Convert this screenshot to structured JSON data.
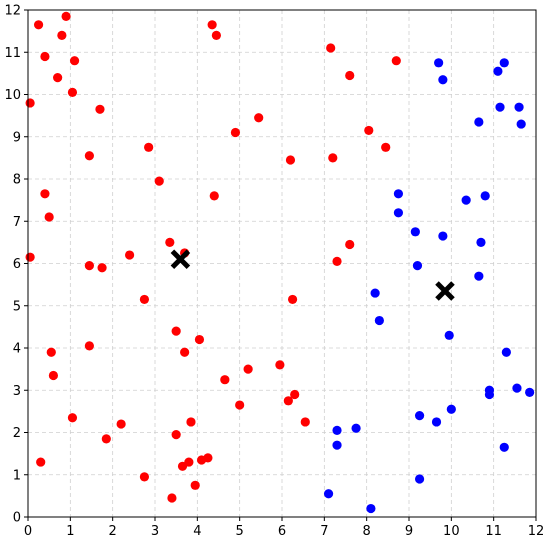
{
  "chart_data": {
    "type": "scatter",
    "title": "",
    "xlabel": "",
    "ylabel": "",
    "xlim": [
      0,
      12
    ],
    "ylim": [
      0,
      12
    ],
    "xticks": [
      0,
      1,
      2,
      3,
      4,
      5,
      6,
      7,
      8,
      9,
      10,
      11,
      12
    ],
    "yticks": [
      0,
      1,
      2,
      3,
      4,
      5,
      6,
      7,
      8,
      9,
      10,
      11,
      12
    ],
    "grid": true,
    "series": [
      {
        "marker": "circle",
        "color": "#ff0000",
        "points": [
          [
            0.25,
            11.65
          ],
          [
            0.9,
            11.85
          ],
          [
            0.4,
            10.9
          ],
          [
            0.8,
            11.4
          ],
          [
            1.1,
            10.8
          ],
          [
            0.7,
            10.4
          ],
          [
            1.05,
            10.05
          ],
          [
            0.05,
            9.8
          ],
          [
            1.7,
            9.65
          ],
          [
            1.45,
            8.55
          ],
          [
            2.85,
            8.75
          ],
          [
            0.4,
            7.65
          ],
          [
            0.5,
            7.1
          ],
          [
            3.1,
            7.95
          ],
          [
            0.05,
            6.15
          ],
          [
            1.45,
            5.95
          ],
          [
            1.75,
            5.9
          ],
          [
            2.4,
            6.2
          ],
          [
            3.35,
            6.5
          ],
          [
            3.7,
            6.25
          ],
          [
            2.75,
            5.15
          ],
          [
            3.5,
            4.4
          ],
          [
            0.55,
            3.9
          ],
          [
            1.45,
            4.05
          ],
          [
            0.6,
            3.35
          ],
          [
            3.7,
            3.9
          ],
          [
            4.05,
            4.2
          ],
          [
            4.65,
            3.25
          ],
          [
            5.2,
            3.5
          ],
          [
            5.0,
            2.65
          ],
          [
            1.05,
            2.35
          ],
          [
            2.2,
            2.2
          ],
          [
            1.85,
            1.85
          ],
          [
            3.5,
            1.95
          ],
          [
            3.85,
            2.25
          ],
          [
            0.3,
            1.3
          ],
          [
            2.75,
            0.95
          ],
          [
            3.65,
            1.2
          ],
          [
            3.8,
            1.3
          ],
          [
            4.1,
            1.35
          ],
          [
            4.25,
            1.4
          ],
          [
            3.4,
            0.45
          ],
          [
            3.95,
            0.75
          ],
          [
            4.35,
            11.65
          ],
          [
            4.45,
            11.4
          ],
          [
            4.9,
            9.1
          ],
          [
            5.45,
            9.45
          ],
          [
            4.4,
            7.6
          ],
          [
            6.2,
            8.45
          ],
          [
            7.15,
            11.1
          ],
          [
            7.6,
            10.45
          ],
          [
            8.7,
            10.8
          ],
          [
            8.05,
            9.15
          ],
          [
            8.45,
            8.75
          ],
          [
            7.2,
            8.5
          ],
          [
            7.6,
            6.45
          ],
          [
            7.3,
            6.05
          ],
          [
            6.25,
            5.15
          ],
          [
            5.95,
            3.6
          ],
          [
            6.3,
            2.9
          ],
          [
            6.15,
            2.75
          ],
          [
            6.55,
            2.25
          ]
        ]
      },
      {
        "marker": "circle",
        "color": "#0000ff",
        "points": [
          [
            9.7,
            10.75
          ],
          [
            9.8,
            10.35
          ],
          [
            11.25,
            10.75
          ],
          [
            11.1,
            10.55
          ],
          [
            11.15,
            9.7
          ],
          [
            11.6,
            9.7
          ],
          [
            10.65,
            9.35
          ],
          [
            11.65,
            9.3
          ],
          [
            8.75,
            7.65
          ],
          [
            8.75,
            7.2
          ],
          [
            10.35,
            7.5
          ],
          [
            10.8,
            7.6
          ],
          [
            9.15,
            6.75
          ],
          [
            9.8,
            6.65
          ],
          [
            10.7,
            6.5
          ],
          [
            9.2,
            5.95
          ],
          [
            10.65,
            5.7
          ],
          [
            8.2,
            5.3
          ],
          [
            8.3,
            4.65
          ],
          [
            9.95,
            4.3
          ],
          [
            11.3,
            3.9
          ],
          [
            10.9,
            3.0
          ],
          [
            10.9,
            2.9
          ],
          [
            11.55,
            3.05
          ],
          [
            11.85,
            2.95
          ],
          [
            9.25,
            2.4
          ],
          [
            9.65,
            2.25
          ],
          [
            10.0,
            2.55
          ],
          [
            7.3,
            2.05
          ],
          [
            7.75,
            2.1
          ],
          [
            7.3,
            1.7
          ],
          [
            11.25,
            1.65
          ],
          [
            7.1,
            0.55
          ],
          [
            9.25,
            0.9
          ],
          [
            8.1,
            0.2
          ]
        ]
      },
      {
        "marker": "x",
        "color": "#000000",
        "points": [
          [
            3.6,
            6.1
          ],
          [
            9.85,
            5.35
          ]
        ]
      }
    ]
  }
}
